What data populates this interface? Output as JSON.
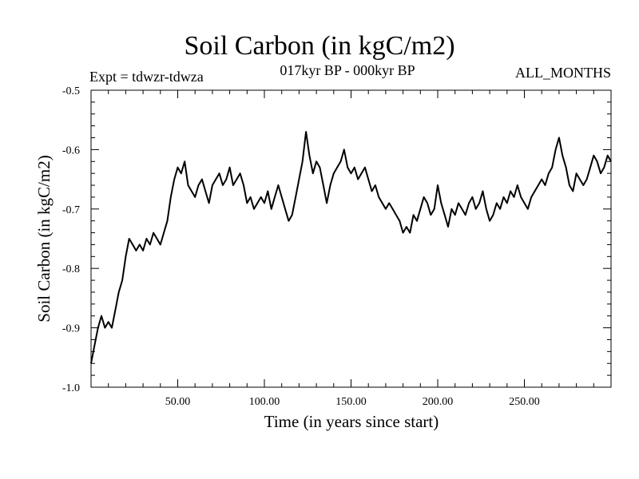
{
  "header": {
    "title": "Soil Carbon (in kgC/m2)",
    "experiment": "Expt = tdwzr-tdwza",
    "period": "017kyr BP - 000kyr BP",
    "months": "ALL_MONTHS"
  },
  "chart_data": {
    "type": "line",
    "title": "Soil Carbon (in kgC/m2)",
    "xlabel": "Time (in years since start)",
    "ylabel": "Soil Carbon (in kgC/m2)",
    "xlim": [
      0,
      300
    ],
    "ylim": [
      -1.0,
      -0.5
    ],
    "x_ticks": [
      50,
      100,
      150,
      200,
      250
    ],
    "x_tick_labels": [
      "50.00",
      "100.00",
      "150.00",
      "200.00",
      "250.00"
    ],
    "y_ticks": [
      -1.0,
      -0.9,
      -0.8,
      -0.7,
      -0.6,
      -0.5
    ],
    "y_tick_labels": [
      "-1.0",
      "-0.9",
      "-0.8",
      "-0.7",
      "-0.6",
      "-0.5"
    ],
    "grid": false,
    "line_color": "#000000",
    "series": [
      {
        "x": [
          0,
          2,
          4,
          6,
          8,
          10,
          12,
          14,
          16,
          18,
          20,
          22,
          24,
          26,
          28,
          30,
          32,
          34,
          36,
          38,
          40,
          42,
          44,
          46,
          48,
          50,
          52,
          54,
          56,
          58,
          60,
          62,
          64,
          66,
          68,
          70,
          72,
          74,
          76,
          78,
          80,
          82,
          84,
          86,
          88,
          90,
          92,
          94,
          96,
          98,
          100,
          102,
          104,
          106,
          108,
          110,
          112,
          114,
          116,
          118,
          120,
          122,
          124,
          126,
          128,
          130,
          132,
          134,
          136,
          138,
          140,
          142,
          144,
          146,
          148,
          150,
          152,
          154,
          156,
          158,
          160,
          162,
          164,
          166,
          168,
          170,
          172,
          174,
          176,
          178,
          180,
          182,
          184,
          186,
          188,
          190,
          192,
          194,
          196,
          198,
          200,
          202,
          204,
          206,
          208,
          210,
          212,
          214,
          216,
          218,
          220,
          222,
          224,
          226,
          228,
          230,
          232,
          234,
          236,
          238,
          240,
          242,
          244,
          246,
          248,
          250,
          252,
          254,
          256,
          258,
          260,
          262,
          264,
          266,
          268,
          270,
          272,
          274,
          276,
          278,
          280,
          282,
          284,
          286,
          288,
          290,
          292,
          294,
          296,
          298,
          300
        ],
        "values": [
          -0.96,
          -0.93,
          -0.9,
          -0.88,
          -0.9,
          -0.89,
          -0.9,
          -0.87,
          -0.84,
          -0.82,
          -0.78,
          -0.75,
          -0.76,
          -0.77,
          -0.76,
          -0.77,
          -0.75,
          -0.76,
          -0.74,
          -0.75,
          -0.76,
          -0.74,
          -0.72,
          -0.68,
          -0.65,
          -0.63,
          -0.64,
          -0.62,
          -0.66,
          -0.67,
          -0.68,
          -0.66,
          -0.65,
          -0.67,
          -0.69,
          -0.66,
          -0.65,
          -0.64,
          -0.66,
          -0.65,
          -0.63,
          -0.66,
          -0.65,
          -0.64,
          -0.66,
          -0.69,
          -0.68,
          -0.7,
          -0.69,
          -0.68,
          -0.69,
          -0.67,
          -0.7,
          -0.68,
          -0.66,
          -0.68,
          -0.7,
          -0.72,
          -0.71,
          -0.68,
          -0.65,
          -0.62,
          -0.57,
          -0.61,
          -0.64,
          -0.62,
          -0.63,
          -0.66,
          -0.69,
          -0.66,
          -0.64,
          -0.63,
          -0.62,
          -0.6,
          -0.63,
          -0.64,
          -0.63,
          -0.65,
          -0.64,
          -0.63,
          -0.65,
          -0.67,
          -0.66,
          -0.68,
          -0.69,
          -0.7,
          -0.69,
          -0.7,
          -0.71,
          -0.72,
          -0.74,
          -0.73,
          -0.74,
          -0.71,
          -0.72,
          -0.7,
          -0.68,
          -0.69,
          -0.71,
          -0.7,
          -0.66,
          -0.69,
          -0.71,
          -0.73,
          -0.7,
          -0.71,
          -0.69,
          -0.7,
          -0.71,
          -0.69,
          -0.68,
          -0.7,
          -0.69,
          -0.67,
          -0.7,
          -0.72,
          -0.71,
          -0.69,
          -0.7,
          -0.68,
          -0.69,
          -0.67,
          -0.68,
          -0.66,
          -0.68,
          -0.69,
          -0.7,
          -0.68,
          -0.67,
          -0.66,
          -0.65,
          -0.66,
          -0.64,
          -0.63,
          -0.6,
          -0.58,
          -0.61,
          -0.63,
          -0.66,
          -0.67,
          -0.64,
          -0.65,
          -0.66,
          -0.65,
          -0.63,
          -0.61,
          -0.62,
          -0.64,
          -0.63,
          -0.61,
          -0.62
        ]
      }
    ]
  }
}
